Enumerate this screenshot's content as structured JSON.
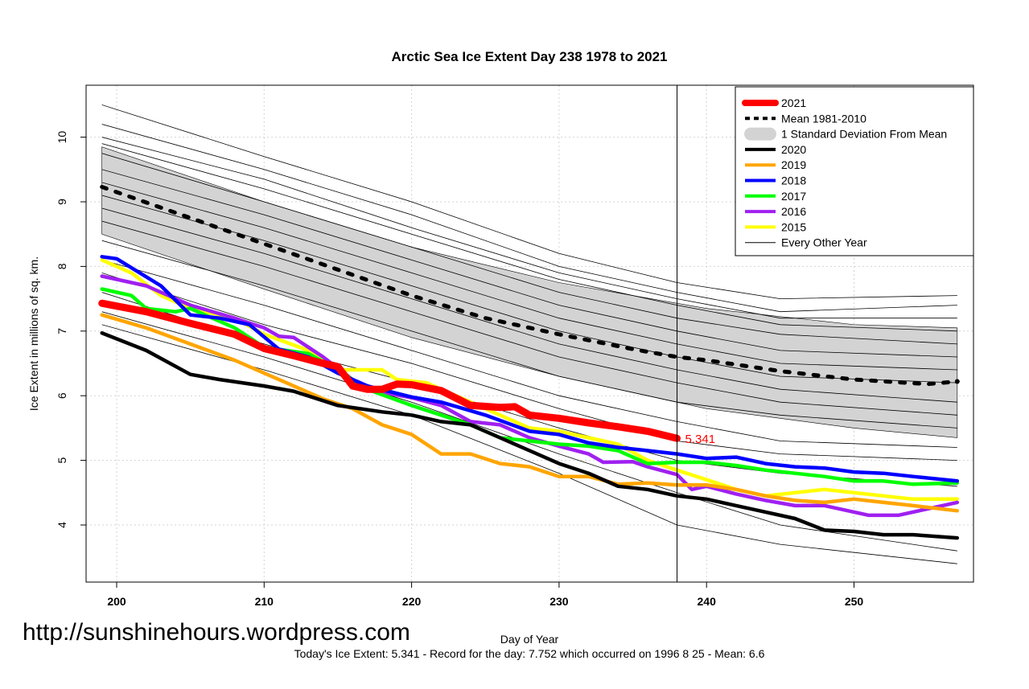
{
  "chart_data": {
    "type": "line",
    "title": "Arctic Sea Ice Extent Day 238 1978 to 2021",
    "xlabel": "Day of Year",
    "ylabel": "Ice Extent in millions of sq. km.",
    "subtitle": "Today's Ice Extent: 5.341  - Record for the day: 7.752 which occurred on 1996 8 25  - Mean: 6.6",
    "watermark": "http://sunshinehours.wordpress.com",
    "xlim": [
      198,
      258
    ],
    "ylim": [
      3.1,
      10.8
    ],
    "xticks": [
      "200",
      "210",
      "220",
      "230",
      "240",
      "250"
    ],
    "yticks": [
      "4",
      "5",
      "6",
      "7",
      "8",
      "9",
      "10"
    ],
    "grid": true,
    "legend_position": "top-right",
    "current_day": 238,
    "current_value_label": "5.341",
    "legend": [
      {
        "label": "2021",
        "color": "#ff0000",
        "style": "thick"
      },
      {
        "label": "Mean 1981-2010",
        "color": "#000000",
        "style": "dotted"
      },
      {
        "label": "1 Standard Deviation From Mean",
        "color": "#d3d3d3",
        "style": "band"
      },
      {
        "label": "2020",
        "color": "#000000",
        "style": "solid"
      },
      {
        "label": "2019",
        "color": "#ffa500",
        "style": "solid"
      },
      {
        "label": "2018",
        "color": "#0000ff",
        "style": "solid"
      },
      {
        "label": "2017",
        "color": "#00ff00",
        "style": "solid"
      },
      {
        "label": "2016",
        "color": "#a020f0",
        "style": "solid"
      },
      {
        "label": "2015",
        "color": "#ffff00",
        "style": "solid"
      },
      {
        "label": "Every Other Year",
        "color": "#000000",
        "style": "thin"
      }
    ],
    "std_band": {
      "x": [
        199,
        210,
        220,
        230,
        240,
        250,
        257
      ],
      "upper": [
        9.85,
        9.0,
        8.3,
        7.75,
        7.35,
        7.1,
        7.05
      ],
      "lower": [
        8.5,
        7.65,
        6.9,
        6.3,
        5.8,
        5.5,
        5.35
      ]
    },
    "mean": {
      "x": [
        199,
        205,
        210,
        215,
        220,
        225,
        230,
        235,
        238,
        240,
        245,
        250,
        255,
        257
      ],
      "y": [
        9.23,
        8.75,
        8.35,
        7.95,
        7.55,
        7.2,
        6.95,
        6.72,
        6.6,
        6.55,
        6.38,
        6.25,
        6.18,
        6.22
      ]
    },
    "other_years": {
      "x": [
        199,
        210,
        220,
        230,
        238,
        245,
        257
      ],
      "series": [
        [
          10.5,
          9.7,
          9.0,
          8.2,
          7.75,
          7.5,
          7.55
        ],
        [
          10.2,
          9.5,
          8.8,
          8.0,
          7.6,
          7.3,
          7.4
        ],
        [
          10.0,
          9.35,
          8.6,
          7.9,
          7.5,
          7.2,
          7.2
        ],
        [
          9.9,
          9.2,
          8.5,
          7.8,
          7.4,
          7.1,
          7.0
        ],
        [
          9.75,
          9.0,
          8.3,
          7.6,
          7.2,
          6.95,
          6.8
        ],
        [
          9.5,
          8.8,
          8.1,
          7.4,
          7.0,
          6.7,
          6.6
        ],
        [
          9.3,
          8.6,
          7.9,
          7.2,
          6.8,
          6.5,
          6.4
        ],
        [
          9.1,
          8.4,
          7.7,
          7.0,
          6.6,
          6.3,
          6.2
        ],
        [
          8.9,
          8.2,
          7.5,
          6.8,
          6.4,
          6.1,
          5.9
        ],
        [
          8.7,
          8.0,
          7.3,
          6.6,
          6.2,
          5.9,
          5.7
        ],
        [
          8.4,
          7.7,
          7.0,
          6.3,
          5.9,
          5.7,
          5.5
        ],
        [
          8.1,
          7.4,
          6.7,
          6.0,
          5.6,
          5.3,
          5.2
        ],
        [
          7.9,
          7.1,
          6.5,
          5.8,
          5.3,
          5.1,
          5.0
        ],
        [
          7.6,
          6.8,
          6.2,
          5.5,
          5.0,
          4.8,
          4.6
        ],
        [
          7.3,
          6.6,
          5.9,
          5.1,
          4.5,
          4.0,
          3.6
        ],
        [
          7.1,
          6.4,
          5.7,
          4.8,
          4.0,
          3.7,
          3.4
        ]
      ]
    },
    "series": [
      {
        "name": "2015",
        "color": "#ffff00",
        "x": [
          199,
          201,
          203,
          205,
          208,
          210,
          213,
          215,
          218,
          219,
          221,
          223,
          225,
          228,
          230,
          232,
          234,
          236,
          238,
          240,
          242,
          244,
          246,
          248,
          250,
          252,
          254,
          257
        ],
        "y": [
          8.1,
          7.9,
          7.55,
          7.35,
          7.2,
          6.95,
          6.7,
          6.4,
          6.4,
          6.25,
          6.2,
          6.0,
          5.8,
          5.5,
          5.45,
          5.35,
          5.25,
          5.0,
          4.85,
          4.7,
          4.55,
          4.45,
          4.5,
          4.55,
          4.5,
          4.45,
          4.4,
          4.4
        ]
      },
      {
        "name": "2016",
        "color": "#a020f0",
        "x": [
          199,
          202,
          205,
          208,
          210,
          211,
          212,
          214,
          216,
          218,
          220,
          222,
          224,
          226,
          228,
          230,
          232,
          233,
          235,
          236,
          238,
          239,
          240,
          242,
          244,
          246,
          248,
          250,
          251,
          253,
          255,
          257
        ],
        "y": [
          7.85,
          7.7,
          7.4,
          7.2,
          7.05,
          6.92,
          6.9,
          6.6,
          6.25,
          6.05,
          5.97,
          5.85,
          5.6,
          5.55,
          5.35,
          5.22,
          5.1,
          4.97,
          4.98,
          4.9,
          4.78,
          4.55,
          4.6,
          4.48,
          4.38,
          4.3,
          4.3,
          4.2,
          4.15,
          4.15,
          4.25,
          4.35
        ]
      },
      {
        "name": "2017",
        "color": "#00ff00",
        "x": [
          199,
          201,
          202,
          204,
          205,
          208,
          210,
          213,
          215,
          217,
          220,
          222,
          224,
          226,
          228,
          230,
          232,
          234,
          235,
          236,
          238,
          240,
          242,
          244,
          246,
          248,
          250,
          252,
          254,
          257
        ],
        "y": [
          7.65,
          7.55,
          7.35,
          7.3,
          7.35,
          7.05,
          6.75,
          6.65,
          6.4,
          6.1,
          5.85,
          5.7,
          5.55,
          5.35,
          5.3,
          5.25,
          5.22,
          5.15,
          5.05,
          4.95,
          4.97,
          4.97,
          4.92,
          4.85,
          4.8,
          4.75,
          4.68,
          4.68,
          4.63,
          4.65
        ]
      },
      {
        "name": "2018",
        "color": "#0000ff",
        "x": [
          199,
          200,
          203,
          205,
          207,
          209,
          211,
          213,
          215,
          217,
          220,
          222,
          225,
          228,
          230,
          232,
          234,
          236,
          238,
          240,
          242,
          244,
          246,
          248,
          250,
          252,
          254,
          257
        ],
        "y": [
          8.15,
          8.12,
          7.7,
          7.25,
          7.2,
          7.1,
          6.72,
          6.6,
          6.35,
          6.15,
          5.98,
          5.9,
          5.7,
          5.45,
          5.4,
          5.27,
          5.2,
          5.15,
          5.1,
          5.03,
          5.05,
          4.95,
          4.9,
          4.88,
          4.82,
          4.8,
          4.75,
          4.68
        ]
      },
      {
        "name": "2019",
        "color": "#ffa500",
        "x": [
          199,
          202,
          205,
          208,
          210,
          212,
          214,
          216,
          218,
          220,
          222,
          224,
          226,
          228,
          230,
          232,
          234,
          236,
          238,
          240,
          242,
          244,
          246,
          248,
          250,
          252,
          254,
          257
        ],
        "y": [
          7.25,
          7.05,
          6.8,
          6.55,
          6.35,
          6.15,
          5.95,
          5.8,
          5.55,
          5.4,
          5.1,
          5.1,
          4.95,
          4.9,
          4.75,
          4.75,
          4.63,
          4.65,
          4.62,
          4.62,
          4.55,
          4.45,
          4.38,
          4.35,
          4.4,
          4.35,
          4.3,
          4.22
        ]
      },
      {
        "name": "2020",
        "color": "#000000",
        "x": [
          199,
          202,
          205,
          207,
          210,
          212,
          215,
          218,
          220,
          222,
          224,
          226,
          228,
          230,
          232,
          234,
          236,
          238,
          240,
          242,
          244,
          246,
          248,
          250,
          252,
          254,
          257
        ],
        "y": [
          6.97,
          6.7,
          6.33,
          6.25,
          6.15,
          6.07,
          5.85,
          5.75,
          5.7,
          5.6,
          5.55,
          5.35,
          5.15,
          4.95,
          4.8,
          4.6,
          4.55,
          4.45,
          4.4,
          4.3,
          4.2,
          4.1,
          3.92,
          3.9,
          3.85,
          3.85,
          3.8
        ]
      },
      {
        "name": "2021",
        "color": "#ff0000",
        "x": [
          199,
          202,
          205,
          208,
          210,
          212,
          214,
          215,
          216,
          217,
          218,
          219,
          220,
          222,
          224,
          226,
          227,
          228,
          230,
          232,
          234,
          236,
          238
        ],
        "y": [
          7.43,
          7.3,
          7.12,
          6.95,
          6.73,
          6.62,
          6.5,
          6.45,
          6.15,
          6.1,
          6.1,
          6.18,
          6.17,
          6.08,
          5.85,
          5.82,
          5.83,
          5.7,
          5.65,
          5.58,
          5.52,
          5.45,
          5.341
        ]
      }
    ]
  }
}
